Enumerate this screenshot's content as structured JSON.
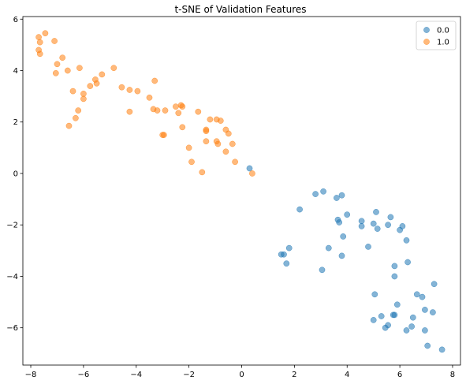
{
  "chart_data": {
    "type": "scatter",
    "title": "t-SNE of Validation Features",
    "xlabel": "",
    "ylabel": "",
    "xlim": [
      -8.3,
      8.3
    ],
    "ylim": [
      -7.45,
      6.1
    ],
    "xticks": [
      -8,
      -6,
      -4,
      -2,
      0,
      2,
      4,
      6,
      8
    ],
    "yticks": [
      -6,
      -4,
      -2,
      0,
      2,
      4,
      6
    ],
    "xtick_labels": [
      "−8",
      "−6",
      "−4",
      "−2",
      "0",
      "2",
      "4",
      "6",
      "8"
    ],
    "ytick_labels": [
      "−6",
      "−4",
      "−2",
      "0",
      "2",
      "4",
      "6"
    ],
    "grid": false,
    "legend_position": "top-right",
    "series": [
      {
        "name": "0.0",
        "color": "#1f77b4",
        "points": [
          [
            0.3,
            0.2
          ],
          [
            2.2,
            -1.4
          ],
          [
            2.8,
            -0.8
          ],
          [
            3.1,
            -0.7
          ],
          [
            3.6,
            -0.95
          ],
          [
            3.8,
            -0.85
          ],
          [
            3.65,
            -1.8
          ],
          [
            3.7,
            -1.9
          ],
          [
            4.0,
            -1.6
          ],
          [
            4.55,
            -1.85
          ],
          [
            4.55,
            -2.05
          ],
          [
            5.0,
            -1.95
          ],
          [
            5.1,
            -1.5
          ],
          [
            5.15,
            -2.15
          ],
          [
            5.55,
            -2.0
          ],
          [
            5.65,
            -1.7
          ],
          [
            6.0,
            -2.2
          ],
          [
            6.1,
            -2.05
          ],
          [
            6.25,
            -2.6
          ],
          [
            4.8,
            -2.85
          ],
          [
            3.85,
            -2.45
          ],
          [
            3.8,
            -3.2
          ],
          [
            3.3,
            -2.9
          ],
          [
            3.05,
            -3.75
          ],
          [
            1.5,
            -3.15
          ],
          [
            1.6,
            -3.15
          ],
          [
            1.8,
            -2.9
          ],
          [
            1.7,
            -3.5
          ],
          [
            5.8,
            -3.6
          ],
          [
            5.8,
            -4.0
          ],
          [
            6.3,
            -3.45
          ],
          [
            7.3,
            -4.3
          ],
          [
            6.65,
            -4.7
          ],
          [
            6.85,
            -4.8
          ],
          [
            5.05,
            -4.7
          ],
          [
            5.9,
            -5.1
          ],
          [
            5.75,
            -5.5
          ],
          [
            5.8,
            -5.5
          ],
          [
            6.95,
            -5.3
          ],
          [
            7.25,
            -5.4
          ],
          [
            6.5,
            -5.6
          ],
          [
            5.3,
            -5.55
          ],
          [
            5.0,
            -5.7
          ],
          [
            5.55,
            -5.9
          ],
          [
            5.45,
            -6.0
          ],
          [
            6.45,
            -5.95
          ],
          [
            6.25,
            -6.1
          ],
          [
            6.95,
            -6.1
          ],
          [
            7.05,
            -6.7
          ],
          [
            7.6,
            -6.85
          ]
        ]
      },
      {
        "name": "1.0",
        "color": "#ff7f0e",
        "points": [
          [
            -7.7,
            5.3
          ],
          [
            -7.65,
            5.1
          ],
          [
            -7.45,
            5.45
          ],
          [
            -7.1,
            5.15
          ],
          [
            -7.7,
            4.8
          ],
          [
            -7.65,
            4.65
          ],
          [
            -6.8,
            4.5
          ],
          [
            -7.0,
            4.25
          ],
          [
            -7.05,
            3.9
          ],
          [
            -6.6,
            4.0
          ],
          [
            -6.15,
            4.1
          ],
          [
            -4.85,
            4.1
          ],
          [
            -5.3,
            3.85
          ],
          [
            -5.55,
            3.65
          ],
          [
            -5.5,
            3.5
          ],
          [
            -5.75,
            3.4
          ],
          [
            -6.4,
            3.2
          ],
          [
            -6.0,
            3.1
          ],
          [
            -6.0,
            2.9
          ],
          [
            -4.55,
            3.35
          ],
          [
            -4.25,
            3.25
          ],
          [
            -3.95,
            3.2
          ],
          [
            -3.3,
            3.6
          ],
          [
            -3.5,
            2.95
          ],
          [
            -3.35,
            2.5
          ],
          [
            -3.2,
            2.45
          ],
          [
            -2.9,
            2.45
          ],
          [
            -4.25,
            2.4
          ],
          [
            -2.5,
            2.6
          ],
          [
            -2.3,
            2.65
          ],
          [
            -2.25,
            2.6
          ],
          [
            -2.4,
            2.35
          ],
          [
            -6.2,
            2.45
          ],
          [
            -6.3,
            2.15
          ],
          [
            -6.55,
            1.85
          ],
          [
            -2.25,
            1.8
          ],
          [
            -1.65,
            2.4
          ],
          [
            -1.2,
            2.1
          ],
          [
            -0.95,
            2.1
          ],
          [
            -0.8,
            2.05
          ],
          [
            -1.35,
            1.7
          ],
          [
            -1.35,
            1.65
          ],
          [
            -0.6,
            1.7
          ],
          [
            -0.5,
            1.55
          ],
          [
            -3.0,
            1.5
          ],
          [
            -2.95,
            1.5
          ],
          [
            -1.35,
            1.25
          ],
          [
            -0.95,
            1.25
          ],
          [
            -0.9,
            1.15
          ],
          [
            -0.35,
            1.15
          ],
          [
            -0.6,
            0.85
          ],
          [
            -2.0,
            1.0
          ],
          [
            -1.9,
            0.45
          ],
          [
            -0.25,
            0.45
          ],
          [
            -1.5,
            0.05
          ],
          [
            0.4,
            0.0
          ]
        ]
      }
    ]
  }
}
